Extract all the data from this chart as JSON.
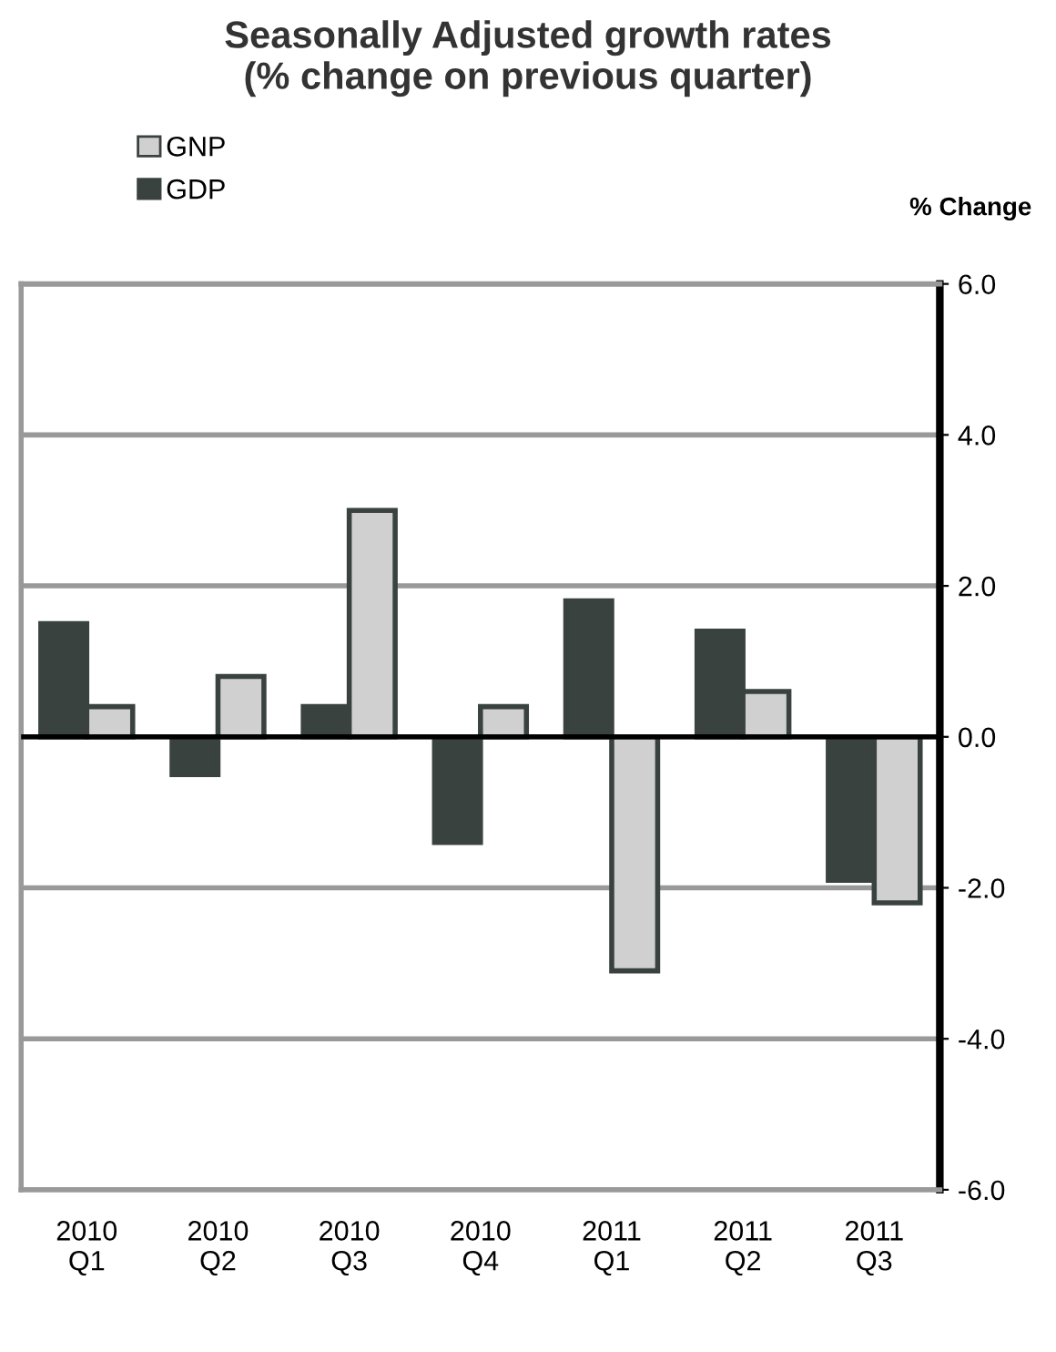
{
  "chart_data": {
    "type": "bar",
    "title": "Seasonally Adjusted growth rates\n(% change on previous quarter)",
    "ylabel": "% Change",
    "categories": [
      "2010\nQ1",
      "2010\nQ2",
      "2010\nQ3",
      "2010\nQ4",
      "2011\nQ1",
      "2011\nQ2",
      "2011\nQ3"
    ],
    "series": [
      {
        "name": "GDP",
        "color": "#3a4240",
        "values": [
          1.5,
          -0.5,
          0.4,
          -1.4,
          1.8,
          1.4,
          -1.9
        ]
      },
      {
        "name": "GNP",
        "color": "#d0d0d0",
        "values": [
          0.4,
          0.8,
          3.0,
          0.4,
          -3.1,
          0.6,
          -2.2
        ]
      }
    ],
    "ylim": [
      -6.0,
      6.0
    ],
    "yticks": [
      {
        "value": -6,
        "label": "-6.0"
      },
      {
        "value": -4,
        "label": "-4.0"
      },
      {
        "value": -2,
        "label": "-2.0"
      },
      {
        "value": 0,
        "label": "0.0"
      },
      {
        "value": 2,
        "label": "2.0"
      },
      {
        "value": 4,
        "label": "4.0"
      },
      {
        "value": 6,
        "label": "6.0"
      }
    ],
    "grid": "y",
    "legend": "top left"
  }
}
